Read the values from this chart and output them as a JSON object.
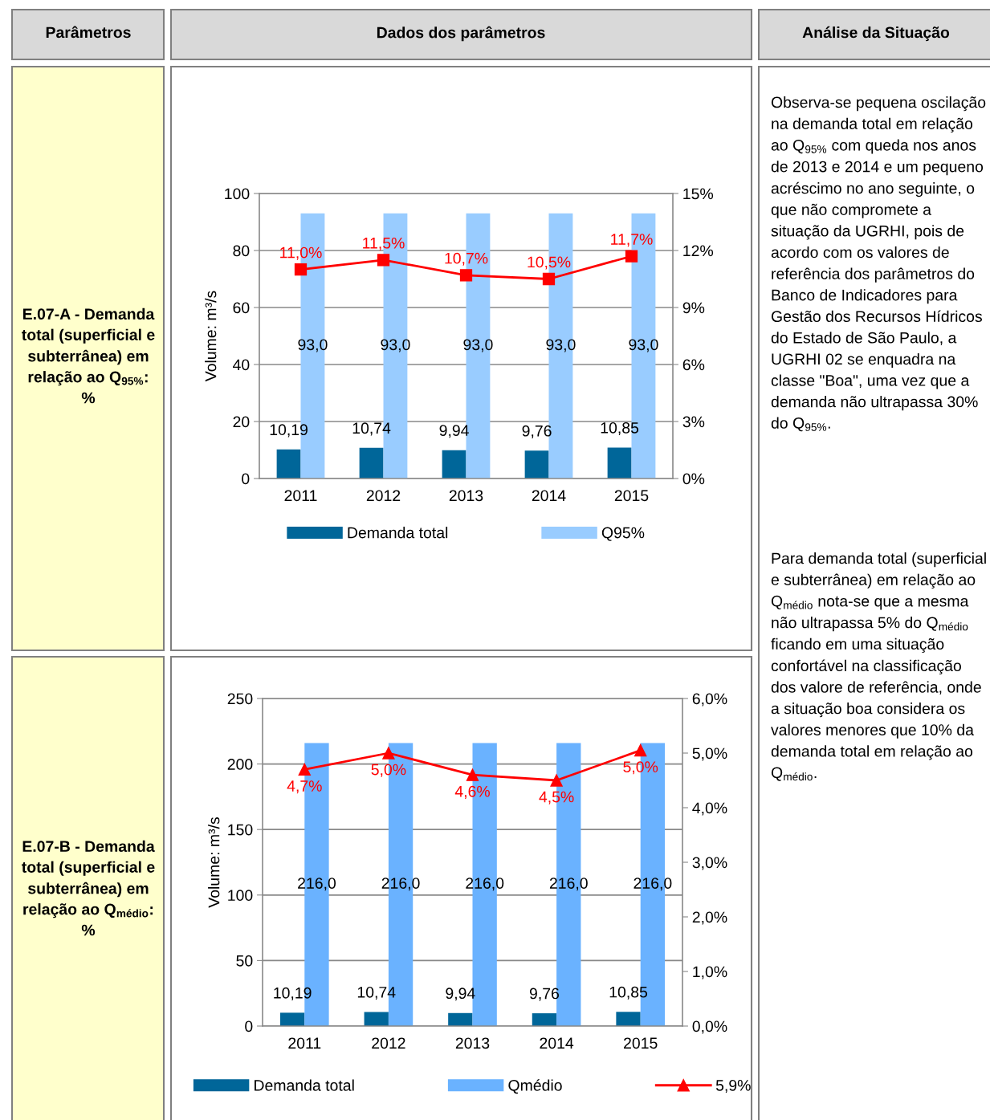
{
  "chart_data": [
    {
      "type": "bar",
      "title": "E.07-A - Demanda total (superficial e subterrânea) em relação ao Q$_{95%}$: %",
      "ylabel": "Volume: m³/s",
      "categories": [
        "2011",
        "2012",
        "2013",
        "2014",
        "2015"
      ],
      "series": [
        {
          "name": "Demanda total",
          "color": "#006699",
          "values": [
            10.19,
            10.74,
            9.94,
            9.76,
            10.85
          ],
          "value_labels": [
            "10,19",
            "10,74",
            "9,94",
            "9,76",
            "10,85"
          ]
        },
        {
          "name": "Q95%",
          "color": "#99ccff",
          "values": [
            93.0,
            93.0,
            93.0,
            93.0,
            93.0
          ],
          "value_labels": [
            "93,0",
            "93,0",
            "93,0",
            "93,0",
            "93,0"
          ]
        },
        {
          "type": "line",
          "axis": "y2",
          "color": "#ff0000",
          "marker": "square",
          "values": [
            11.0,
            11.5,
            10.7,
            10.5,
            11.7
          ],
          "value_labels": [
            "11,0%",
            "11,5%",
            "10,7%",
            "10,5%",
            "11,7%"
          ]
        }
      ],
      "ylim": [
        0,
        100
      ],
      "yticks": [
        0,
        20,
        40,
        60,
        80,
        100
      ],
      "y2lim": [
        0,
        15
      ],
      "y2ticks": [
        {
          "value": 0,
          "label": "0%"
        },
        {
          "value": 3,
          "label": "3%"
        },
        {
          "value": 6,
          "label": "6%"
        },
        {
          "value": 9,
          "label": "9%"
        },
        {
          "value": 12,
          "label": "12%"
        },
        {
          "value": 15,
          "label": "15%"
        }
      ],
      "grid": "y",
      "legend": "bottom",
      "annotations": [
        "Parâmetros",
        "Dados dos parâmetros",
        "Análise da Situação",
        "Observa-se pequena oscilação na demanda total em relação ao Q$_{95%}$ com queda nos anos de 2013 e 2014 e um pequeno acréscimo no ano seguinte, o que não compromete a situação da UGRHI, pois de acordo com os valores de referência dos parâmetros do Banco de Indicadores para Gestão dos Recursos Hídricos do Estado de São Paulo, a UGRHI 02 se enquadra na classe \"Boa\", uma vez que a demanda não ultrapassa 30% do Q$_{95%}$.",
        "Para demanda total (superficial e subterrânea) em relação ao Q$_{médio}$ nota-se que a mesma não ultrapassa 5% do Q$_{médio}$ ficando em uma situação confortável na classificação dos valore de referência, onde a situação boa considera os valores menores que 10% da demanda total em relação ao Q$_{médio}$."
      ]
    },
    {
      "type": "bar",
      "title": "E.07-B - Demanda total (superficial e subterrânea) em relação ao Q$_{médio}$: %",
      "ylabel": "Volume: m³/s",
      "categories": [
        "2011",
        "2012",
        "2013",
        "2014",
        "2015"
      ],
      "series": [
        {
          "name": "Demanda total",
          "color": "#006699",
          "values": [
            10.19,
            10.74,
            9.94,
            9.76,
            10.85
          ],
          "value_labels": [
            "10,19",
            "10,74",
            "9,94",
            "9,76",
            "10,85"
          ]
        },
        {
          "name": "Qmédio",
          "color": "#6ab2ff",
          "values": [
            216.0,
            216.0,
            216.0,
            216.0,
            216.0
          ],
          "value_labels": [
            "216,0",
            "216,0",
            "216,0",
            "216,0",
            "216,0"
          ]
        },
        {
          "type": "line",
          "axis": "y2",
          "name": "5,9%",
          "color": "#ff0000",
          "marker": "triangle",
          "values": [
            4.7,
            5.0,
            4.6,
            4.5,
            5.05
          ],
          "value_labels": [
            "4,7%",
            "5,0%",
            "4,6%",
            "4,5%",
            "5,0%"
          ]
        }
      ],
      "ylim": [
        0,
        250
      ],
      "yticks": [
        0,
        50,
        100,
        150,
        200,
        250
      ],
      "y2lim": [
        0,
        6
      ],
      "y2ticks": [
        {
          "value": 0,
          "label": "0,0%"
        },
        {
          "value": 1,
          "label": "1,0%"
        },
        {
          "value": 2,
          "label": "2,0%"
        },
        {
          "value": 3,
          "label": "3,0%"
        },
        {
          "value": 4,
          "label": "4,0%"
        },
        {
          "value": 5,
          "label": "5,0%"
        },
        {
          "value": 6,
          "label": "6,0%"
        }
      ],
      "grid": "y",
      "legend": "bottom"
    }
  ]
}
